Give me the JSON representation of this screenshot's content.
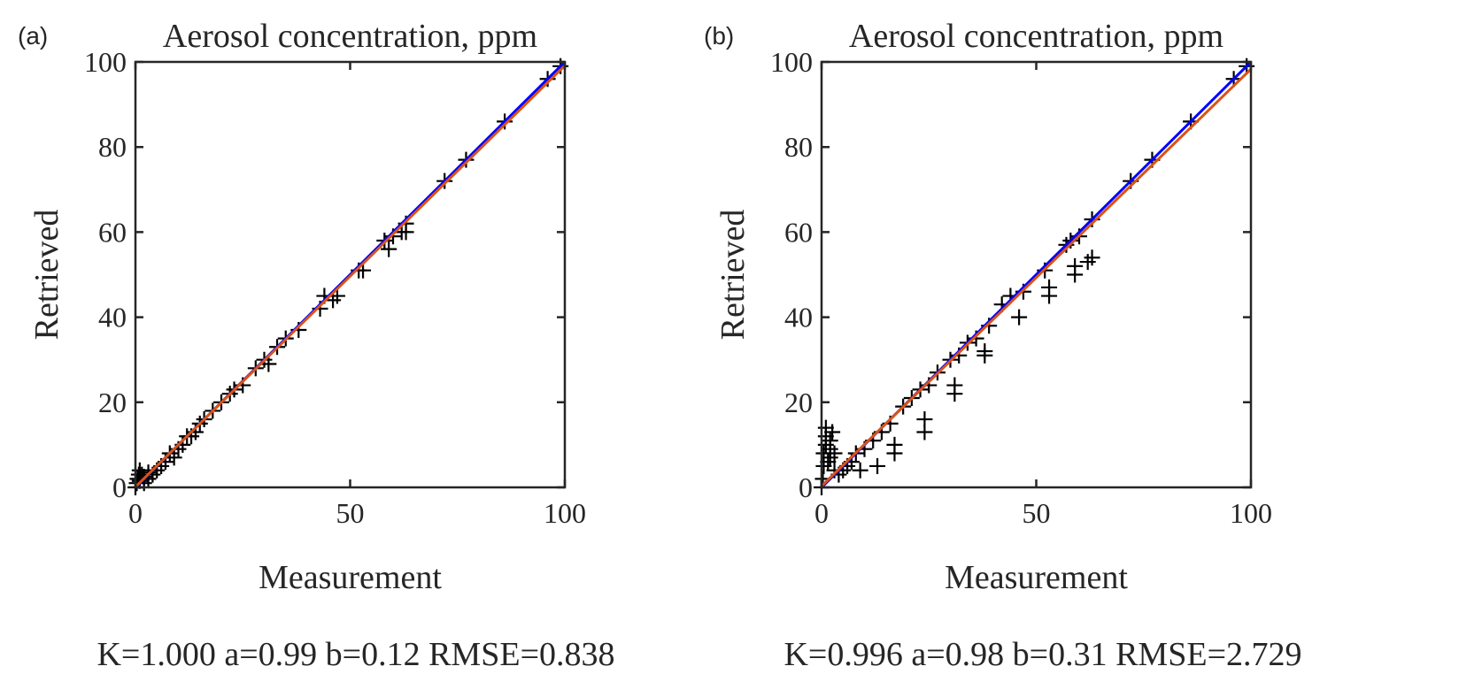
{
  "chart_data": [
    {
      "type": "scatter",
      "panel_label": "(a)",
      "title": "Aerosol concentration, ppm",
      "xlabel": "Measurement",
      "ylabel": "Retrieved",
      "xlim": [
        0,
        100
      ],
      "ylim": [
        0,
        100
      ],
      "xticks": [
        0,
        50,
        100
      ],
      "yticks": [
        0,
        20,
        40,
        60,
        80,
        100
      ],
      "grid": false,
      "marker": "+",
      "stats": "K=1.000 a=0.99 b=0.12 RMSE=0.838",
      "lines": [
        {
          "kind": "identity",
          "slope": 1,
          "intercept": 0,
          "color": "#0000ff"
        },
        {
          "kind": "fit",
          "slope": 0.99,
          "intercept": 0.12,
          "color": "#d95319"
        }
      ],
      "points": [
        [
          0,
          0
        ],
        [
          0.3,
          1
        ],
        [
          0.5,
          2
        ],
        [
          0.8,
          3
        ],
        [
          1,
          4
        ],
        [
          1,
          1.5
        ],
        [
          1.5,
          3
        ],
        [
          2,
          1
        ],
        [
          2,
          2.5
        ],
        [
          3,
          2
        ],
        [
          3,
          3.5
        ],
        [
          4,
          3
        ],
        [
          5,
          4
        ],
        [
          6,
          5
        ],
        [
          7,
          6
        ],
        [
          8,
          8
        ],
        [
          9,
          7
        ],
        [
          10,
          9
        ],
        [
          11,
          10
        ],
        [
          12,
          12
        ],
        [
          13,
          12
        ],
        [
          14,
          13
        ],
        [
          15,
          15
        ],
        [
          16,
          16
        ],
        [
          18,
          18
        ],
        [
          20,
          20
        ],
        [
          22,
          22
        ],
        [
          23,
          23
        ],
        [
          25,
          24
        ],
        [
          28,
          28
        ],
        [
          30,
          30
        ],
        [
          31,
          29
        ],
        [
          33,
          33
        ],
        [
          35,
          35
        ],
        [
          38,
          37
        ],
        [
          43,
          42
        ],
        [
          44,
          45
        ],
        [
          46,
          44
        ],
        [
          47,
          45
        ],
        [
          52,
          51
        ],
        [
          53,
          51
        ],
        [
          58,
          58
        ],
        [
          59,
          56
        ],
        [
          60,
          59
        ],
        [
          62,
          60
        ],
        [
          63,
          60
        ],
        [
          63,
          62
        ],
        [
          72,
          72
        ],
        [
          77,
          77
        ],
        [
          86,
          86
        ],
        [
          96,
          96
        ],
        [
          99,
          99
        ]
      ]
    },
    {
      "type": "scatter",
      "panel_label": "(b)",
      "title": "Aerosol concentration, ppm",
      "xlabel": "Measurement",
      "ylabel": "Retrieved",
      "xlim": [
        0,
        100
      ],
      "ylim": [
        0,
        100
      ],
      "xticks": [
        0,
        50,
        100
      ],
      "yticks": [
        0,
        20,
        40,
        60,
        80,
        100
      ],
      "grid": false,
      "marker": "+",
      "stats": "K=0.996 a=0.98 b=0.31 RMSE=2.729",
      "lines": [
        {
          "kind": "identity",
          "slope": 1,
          "intercept": 0,
          "color": "#0000ff"
        },
        {
          "kind": "fit",
          "slope": 0.98,
          "intercept": 0.31,
          "color": "#d95319"
        }
      ],
      "points": [
        [
          0,
          0
        ],
        [
          0.3,
          2
        ],
        [
          0.5,
          5
        ],
        [
          0.5,
          8
        ],
        [
          1,
          10
        ],
        [
          1,
          12
        ],
        [
          1.5,
          6
        ],
        [
          2,
          9
        ],
        [
          2,
          11
        ],
        [
          2.5,
          13
        ],
        [
          3,
          8
        ],
        [
          3,
          4
        ],
        [
          1,
          14
        ],
        [
          2,
          7
        ],
        [
          4,
          3
        ],
        [
          5,
          4
        ],
        [
          6,
          5
        ],
        [
          7,
          6
        ],
        [
          8,
          8
        ],
        [
          9,
          4
        ],
        [
          10,
          9
        ],
        [
          12,
          11
        ],
        [
          13,
          5
        ],
        [
          14,
          13
        ],
        [
          16,
          15
        ],
        [
          17,
          8
        ],
        [
          17,
          10
        ],
        [
          19,
          19
        ],
        [
          21,
          21
        ],
        [
          23,
          23
        ],
        [
          24,
          13
        ],
        [
          24,
          16
        ],
        [
          25,
          24
        ],
        [
          27,
          27
        ],
        [
          30,
          30
        ],
        [
          31,
          22
        ],
        [
          31,
          24
        ],
        [
          32,
          31
        ],
        [
          34,
          34
        ],
        [
          36,
          35
        ],
        [
          38,
          31
        ],
        [
          38,
          32
        ],
        [
          39,
          38
        ],
        [
          42,
          43
        ],
        [
          44,
          45
        ],
        [
          46,
          40
        ],
        [
          47,
          46
        ],
        [
          52,
          51
        ],
        [
          53,
          45
        ],
        [
          53,
          47
        ],
        [
          57,
          57
        ],
        [
          58,
          58
        ],
        [
          59,
          50
        ],
        [
          59,
          52
        ],
        [
          60,
          59
        ],
        [
          62,
          53
        ],
        [
          63,
          54
        ],
        [
          63,
          63
        ],
        [
          72,
          72
        ],
        [
          77,
          77
        ],
        [
          86,
          86
        ],
        [
          96,
          96
        ],
        [
          99,
          99
        ]
      ]
    }
  ]
}
